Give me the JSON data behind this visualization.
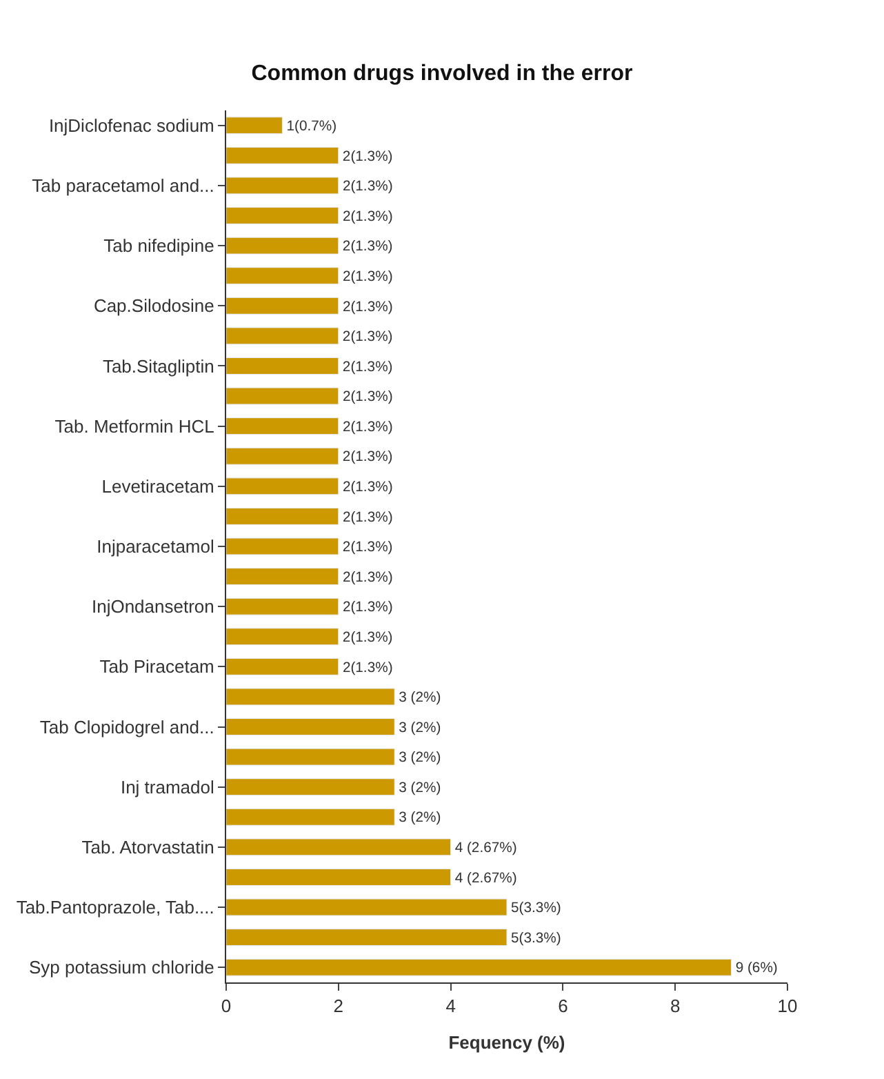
{
  "chart_data": {
    "type": "bar",
    "orientation": "horizontal",
    "title": "Common drugs involved in the error",
    "xlabel": "Fequency (%)",
    "categories": [
      "InjDiclofenac sodium",
      null,
      "Tab paracetamol and...",
      null,
      "Tab nifedipine",
      null,
      "Cap.Silodosine",
      null,
      "Tab.Sitagliptin",
      null,
      "Tab. Metformin HCL",
      null,
      "Levetiracetam",
      null,
      "Injparacetamol",
      null,
      "InjOndansetron",
      null,
      "Tab Piracetam",
      null,
      "Tab Clopidogrel and...",
      null,
      "Inj tramadol",
      null,
      "Tab. Atorvastatin",
      null,
      "Tab.Pantoprazole, Tab....",
      null,
      "Syp potassium chloride"
    ],
    "values": [
      1,
      2,
      2,
      2,
      2,
      2,
      2,
      2,
      2,
      2,
      2,
      2,
      2,
      2,
      2,
      2,
      2,
      2,
      2,
      3,
      3,
      3,
      3,
      3,
      4,
      4,
      5,
      5,
      9
    ],
    "value_labels": [
      "1(0.7%)",
      "2(1.3%)",
      "2(1.3%)",
      "2(1.3%)",
      "2(1.3%)",
      "2(1.3%)",
      "2(1.3%)",
      "2(1.3%)",
      "2(1.3%)",
      "2(1.3%)",
      "2(1.3%)",
      "2(1.3%)",
      "2(1.3%)",
      "2(1.3%)",
      "2(1.3%)",
      "2(1.3%)",
      "2(1.3%)",
      "2(1.3%)",
      "2(1.3%)",
      "3 (2%)",
      "3 (2%)",
      "3 (2%)",
      "3 (2%)",
      "3 (2%)",
      "4 (2.67%)",
      "4 (2.67%)",
      "5(3.3%)",
      "5(3.3%)",
      "9 (6%)"
    ],
    "color": "#cc9900",
    "xlim": [
      0,
      10
    ],
    "xticks": [
      0,
      2,
      4,
      6,
      8,
      10
    ],
    "legend": false
  }
}
